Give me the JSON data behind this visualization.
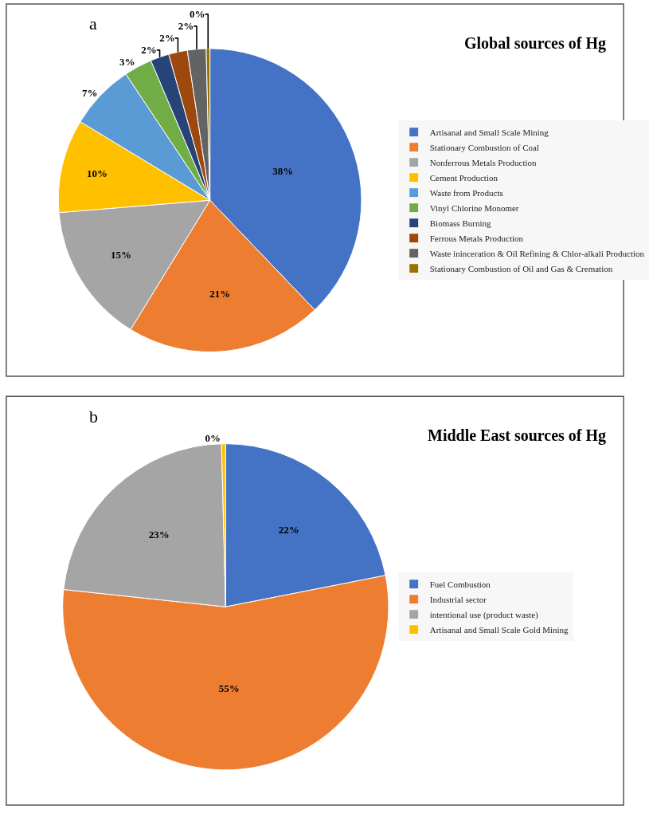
{
  "chart_data": [
    {
      "type": "pie",
      "title": "Global sources of Hg",
      "annotations": [
        "a"
      ],
      "categories": [
        "Artisanal and Small Scale Mining",
        "Stationary Combustion of Coal",
        "Nonferrous Metals Production",
        "Cement Production",
        "Waste from Products",
        "Vinyl Chlorine Monomer",
        "Biomass Burning",
        "Ferrous Metals Production",
        "Waste ininceration & Oil Refining & Chlor-alkali Production",
        "Stationary Combustion of Oil and Gas & Cremation"
      ],
      "values": [
        38,
        21,
        15,
        10,
        7,
        3,
        2,
        2,
        2,
        0.4
      ],
      "value_labels": [
        "38%",
        "21%",
        "15%",
        "10%",
        "7%",
        "3%",
        "2%",
        "2%",
        "2%",
        "0%"
      ],
      "colors": [
        "#4472c4",
        "#ed7d31",
        "#a5a5a5",
        "#ffc000",
        "#5b9bd5",
        "#70ad47",
        "#264478",
        "#9e480e",
        "#636363",
        "#997300"
      ],
      "legend": "right"
    },
    {
      "type": "pie",
      "title": "Middle East sources of Hg",
      "annotations": [
        "b"
      ],
      "categories": [
        "Fuel Combustion",
        "Industrial sector",
        "intentional use (product waste)",
        "Artisanal and Small Scale Gold Mining"
      ],
      "values": [
        22,
        55,
        23,
        0.4
      ],
      "value_labels": [
        "22%",
        "55%",
        "23%",
        "0%"
      ],
      "colors": [
        "#4472c4",
        "#ed7d31",
        "#a5a5a5",
        "#ffc000"
      ],
      "legend": "right"
    }
  ]
}
